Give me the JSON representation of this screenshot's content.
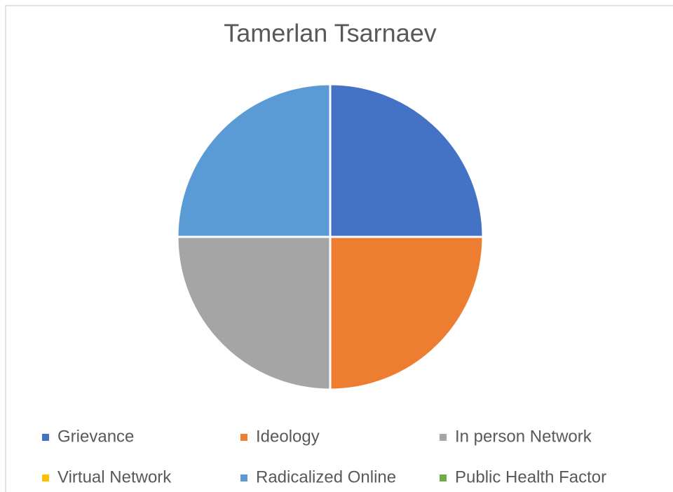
{
  "chart_data": {
    "type": "pie",
    "title": "Tamerlan Tsarnaev",
    "categories": [
      "Grievance",
      "Ideology",
      "In person Network",
      "Virtual Network",
      "Radicalized Online",
      "Public Health Factor"
    ],
    "values": [
      25,
      25,
      25,
      0,
      25,
      0
    ],
    "colors": [
      "#4472c4",
      "#ed7d31",
      "#a5a5a5",
      "#ffc000",
      "#5b9bd5",
      "#70ad47"
    ],
    "legend": "bottom"
  }
}
